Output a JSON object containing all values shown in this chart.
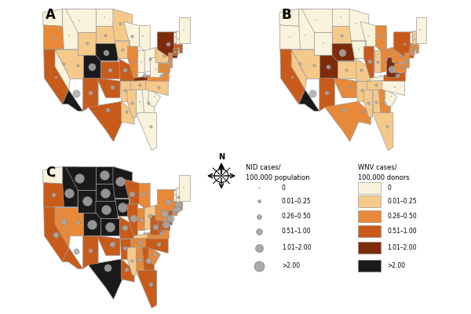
{
  "title": "",
  "background_color": "#ffffff",
  "panel_labels": [
    "A",
    "B",
    "C"
  ],
  "wnv_colors": {
    "0": "#faf3dc",
    "0.01-0.25": "#f5c98a",
    "0.26-0.50": "#e8893a",
    "0.51-1.00": "#c95b1a",
    "1.01-2.00": "#7d2b0a",
    "2.00+": "#1a1a1a"
  },
  "nid_sizes": {
    "0": 1,
    "0.01-0.25": 3,
    "0.26-0.50": 6,
    "0.51-1.00": 10,
    "1.01-2.00": 16,
    "2.00+": 24
  },
  "legend_wnv_colors": [
    "#faf3dc",
    "#f5c98a",
    "#e8893a",
    "#c95b1a",
    "#7d2b0a",
    "#1a1a1a"
  ],
  "legend_wnv_labels": [
    "0",
    "0.01–0.25",
    "0.26–0.50",
    "0.51–1.00",
    "1.01–2.00",
    ">2.00"
  ],
  "legend_nid_sizes": [
    1,
    3,
    6,
    10,
    16,
    24
  ],
  "legend_nid_labels": [
    "0",
    "0.01–0.25",
    "0.26–0.50",
    "0.51–1.00",
    "1.01–2.00",
    ">2.00"
  ],
  "state_wnv_A": {
    "WA": "0",
    "OR": "0.26-0.50",
    "CA": "0.51-1.00",
    "NV": "0",
    "ID": "0",
    "MT": "0",
    "WY": "0.01-0.25",
    "UT": "0.01-0.25",
    "AZ": "2.00+",
    "CO": "2.00+",
    "NM": "0.51-1.00",
    "ND": "0",
    "SD": "0.01-0.25",
    "NE": "2.00+",
    "KS": "0.51-1.00",
    "OK": "0.51-1.00",
    "TX": "0.51-1.00",
    "MN": "0.01-0.25",
    "IA": "0.01-0.25",
    "MO": "0.51-1.00",
    "AR": "0.01-0.25",
    "LA": "0.01-0.25",
    "WI": "0",
    "IL": "0.26-0.50",
    "MS": "0.01-0.25",
    "MI": "0",
    "IN": "0",
    "OH": "0",
    "KY": "1.01-2.00",
    "TN": "0.01-0.25",
    "AL": "0",
    "GA": "0",
    "FL": "0",
    "SC": "0",
    "NC": "0.01-0.25",
    "VA": "0.26-0.50",
    "WV": "0",
    "PA": "0.01-0.25",
    "NY": "1.01-2.00",
    "VT": "0",
    "NH": "0",
    "ME": "0",
    "MA": "0.51-1.00",
    "RI": "0",
    "CT": "0.51-1.00",
    "NJ": "0.26-0.50",
    "DE": "0",
    "MD": "0.26-0.50",
    "DC": "0",
    "AK": "0",
    "HI": "0"
  },
  "state_wnv_B": {
    "WA": "0",
    "OR": "0",
    "CA": "0.51-1.00",
    "NV": "0.01-0.25",
    "ID": "0",
    "MT": "0",
    "WY": "0",
    "UT": "0.01-0.25",
    "AZ": "2.00+",
    "CO": "1.01-2.00",
    "NM": "0.51-1.00",
    "ND": "0",
    "SD": "0.01-0.25",
    "NE": "1.01-2.00",
    "KS": "0.01-0.25",
    "OK": "0.26-0.50",
    "TX": "0.26-0.50",
    "MN": "0",
    "IA": "0",
    "MO": "0.01-0.25",
    "AR": "0.01-0.25",
    "LA": "0.26-0.50",
    "WI": "0",
    "IL": "0.51-1.00",
    "MS": "0.01-0.25",
    "MI": "0.26-0.50",
    "IN": "0.01-0.25",
    "OH": "0.26-0.50",
    "KY": "0",
    "TN": "0.01-0.25",
    "AL": "0.01-0.25",
    "GA": "0.26-0.50",
    "FL": "0.01-0.25",
    "SC": "0",
    "NC": "0",
    "VA": "0.51-1.00",
    "WV": "1.01-2.00",
    "PA": "0.26-0.50",
    "NY": "0.51-1.00",
    "VT": "0",
    "NH": "0.01-0.25",
    "ME": "0",
    "MA": "0.26-0.50",
    "RI": "0.01-0.25",
    "CT": "0.26-0.50",
    "NJ": "0.26-0.50",
    "DE": "0.01-0.25",
    "MD": "0.26-0.50",
    "DC": "0",
    "AK": "0",
    "HI": "0"
  },
  "state_wnv_C": {
    "WA": "0",
    "OR": "0.51-1.00",
    "CA": "0.51-1.00",
    "NV": "0.26-0.50",
    "ID": "2.00+",
    "MT": "2.00+",
    "WY": "2.00+",
    "UT": "0.26-0.50",
    "AZ": "0.51-1.00",
    "CO": "2.00+",
    "NM": "0.51-1.00",
    "ND": "2.00+",
    "SD": "2.00+",
    "NE": "2.00+",
    "KS": "2.00+",
    "OK": "0.51-1.00",
    "TX": "2.00+",
    "MN": "2.00+",
    "IA": "2.00+",
    "MO": "0.51-1.00",
    "AR": "0.51-1.00",
    "LA": "0.51-1.00",
    "WI": "0.51-1.00",
    "IL": "0.51-1.00",
    "MS": "0.01-0.25",
    "MI": "0.26-0.50",
    "IN": "0.26-0.50",
    "OH": "0.01-0.25",
    "KY": "0.01-0.25",
    "TN": "0.26-0.50",
    "AL": "0.26-0.50",
    "GA": "0.51-1.00",
    "FL": "0.51-1.00",
    "SC": "0.26-0.50",
    "NC": "0.51-1.00",
    "VA": "0.26-0.50",
    "WV": "0.51-1.00",
    "PA": "0.26-0.50",
    "NY": "0.26-0.50",
    "VT": "0",
    "NH": "0",
    "ME": "0",
    "MA": "0.26-0.50",
    "RI": "0.01-0.25",
    "CT": "0.26-0.50",
    "NJ": "0.51-1.00",
    "DE": "0",
    "MD": "0.51-1.00",
    "DC": "0",
    "AK": "0",
    "HI": "0"
  },
  "state_nid_A": {
    "WA": "0",
    "OR": "0.01-0.25",
    "CA": "0.01-0.25",
    "NV": "0.01-0.25",
    "ID": "0",
    "MT": "0",
    "WY": "0.01-0.25",
    "UT": "0.01-0.25",
    "AZ": "1.01-2.00",
    "CO": "1.01-2.00",
    "NM": "0.26-0.50",
    "ND": "0",
    "SD": "0.01-0.25",
    "NE": "0.51-1.00",
    "KS": "0.26-0.50",
    "OK": "0.26-0.50",
    "TX": "0.26-0.50",
    "MN": "0.01-0.25",
    "IA": "0.01-0.25",
    "MO": "0.26-0.50",
    "AR": "0.01-0.25",
    "LA": "0.01-0.25",
    "WI": "0.01-0.25",
    "IL": "0.01-0.25",
    "MS": "0.01-0.25",
    "MI": "0",
    "IN": "0",
    "OH": "0.01-0.25",
    "KY": "0.26-0.50",
    "TN": "0.01-0.25",
    "AL": "0",
    "GA": "0.01-0.25",
    "FL": "0.01-0.25",
    "SC": "0",
    "NC": "0.01-0.25",
    "VA": "0.01-0.25",
    "WV": "0",
    "PA": "0.01-0.25",
    "NY": "0.26-0.50",
    "VT": "0",
    "NH": "0",
    "ME": "0",
    "MA": "0.01-0.25",
    "RI": "0",
    "CT": "0.01-0.25",
    "NJ": "0.01-0.25",
    "DE": "0",
    "MD": "0.01-0.25",
    "DC": "0",
    "AK": "0",
    "HI": "0"
  },
  "state_nid_B": {
    "WA": "0",
    "OR": "0",
    "CA": "0.01-0.25",
    "NV": "0.01-0.25",
    "ID": "0",
    "MT": "0",
    "WY": "0",
    "UT": "0.01-0.25",
    "AZ": "1.01-2.00",
    "CO": "0.26-0.50",
    "NM": "0.26-0.50",
    "ND": "0",
    "SD": "0.01-0.25",
    "NE": "1.01-2.00",
    "KS": "0.01-0.25",
    "OK": "0.01-0.25",
    "TX": "0.26-0.50",
    "MN": "0",
    "IA": "0",
    "MO": "0.01-0.25",
    "AR": "0.01-0.25",
    "LA": "0.01-0.25",
    "WI": "0",
    "IL": "0.26-0.50",
    "MS": "0.01-0.25",
    "MI": "0.01-0.25",
    "IN": "0.01-0.25",
    "OH": "0.01-0.25",
    "KY": "0",
    "TN": "0.01-0.25",
    "AL": "0.01-0.25",
    "GA": "0.01-0.25",
    "FL": "0.01-0.25",
    "SC": "0",
    "NC": "0",
    "VA": "0.26-0.50",
    "WV": "1.01-2.00",
    "PA": "0.01-0.25",
    "NY": "0.01-0.25",
    "VT": "0",
    "NH": "0",
    "ME": "0",
    "MA": "0.01-0.25",
    "RI": "0",
    "CT": "0.01-0.25",
    "NJ": "0.01-0.25",
    "DE": "0",
    "MD": "0.01-0.25",
    "DC": "0",
    "AK": "0",
    "HI": "0"
  },
  "state_nid_C": {
    "WA": "0.01-0.25",
    "OR": "0.26-0.50",
    "CA": "0.51-1.00",
    "NV": "0.51-1.00",
    "ID": "2.00+",
    "MT": "2.00+",
    "WY": "2.00+",
    "UT": "0.26-0.50",
    "AZ": "0.51-1.00",
    "CO": "2.00+",
    "NM": "0.26-0.50",
    "ND": "2.00+",
    "SD": "2.00+",
    "NE": "2.00+",
    "KS": "2.00+",
    "OK": "0.51-1.00",
    "TX": "1.01-2.00",
    "MN": "2.00+",
    "IA": "2.00+",
    "MO": "0.51-1.00",
    "AR": "0.26-0.50",
    "LA": "0.26-0.50",
    "WI": "0.51-1.00",
    "IL": "1.01-2.00",
    "MS": "0.01-0.25",
    "MI": "0.26-0.50",
    "IN": "0.26-0.50",
    "OH": "0.26-0.50",
    "KY": "0.01-0.25",
    "TN": "0.26-0.50",
    "AL": "0.26-0.50",
    "GA": "0.51-1.00",
    "FL": "0.26-0.50",
    "SC": "0.26-0.50",
    "NC": "0.26-0.50",
    "VA": "0.26-0.50",
    "WV": "0.51-1.00",
    "PA": "1.01-2.00",
    "NY": "0.51-1.00",
    "VT": "0",
    "NH": "0.01-0.25",
    "ME": "0",
    "MA": "1.01-2.00",
    "RI": "0.51-1.00",
    "CT": "0.51-1.00",
    "NJ": "1.01-2.00",
    "DE": "0.26-0.50",
    "MD": "1.01-2.00",
    "DC": "0",
    "AK": "0",
    "HI": "0"
  }
}
